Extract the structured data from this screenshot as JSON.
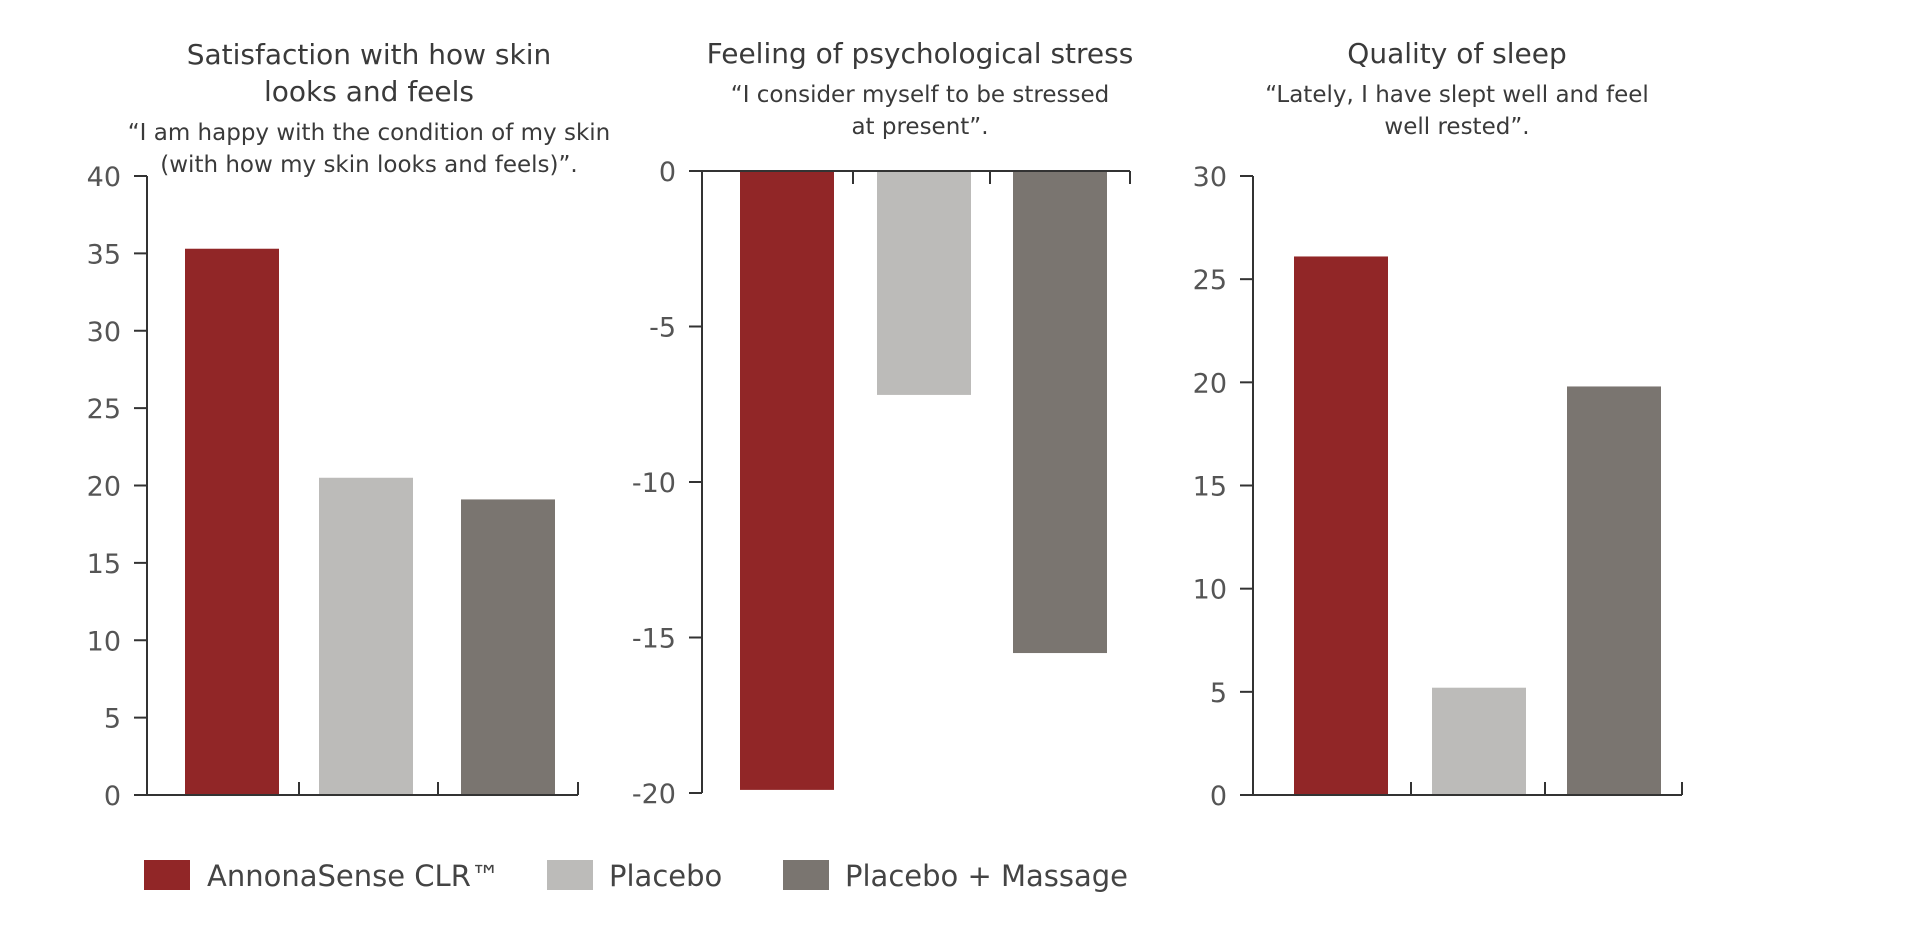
{
  "colors": {
    "AnnonaSense CLR™": "#912627",
    "Placebo": "#bcbbb9",
    "Placebo + Massage": "#7a7570"
  },
  "legend": [
    "AnnonaSense CLR™",
    "Placebo",
    "Placebo + Massage"
  ],
  "chart_data": [
    {
      "type": "bar",
      "title": [
        "Satisfaction with how skin",
        "looks and feels"
      ],
      "subtitle": [
        "“I am happy with the condition of my skin",
        "(with how my skin looks and feels)”."
      ],
      "categories": [
        "AnnonaSense CLR™",
        "Placebo",
        "Placebo + Massage"
      ],
      "values": [
        35.3,
        20.5,
        19.1
      ],
      "ylim": [
        0,
        40
      ],
      "yticks": [
        0,
        5,
        10,
        15,
        20,
        25,
        30,
        35,
        40
      ],
      "grid": false
    },
    {
      "type": "bar",
      "title": [
        "Feeling of psychological stress"
      ],
      "subtitle": [
        "“I consider myself to be stressed",
        "at present”."
      ],
      "categories": [
        "AnnonaSense CLR™",
        "Placebo",
        "Placebo + Massage"
      ],
      "values": [
        -19.9,
        -7.2,
        -15.5
      ],
      "ylim": [
        -20,
        0
      ],
      "yticks": [
        0,
        -5,
        -10,
        -15,
        -20
      ],
      "grid": false
    },
    {
      "type": "bar",
      "title": [
        "Quality of sleep"
      ],
      "subtitle": [
        "“Lately, I have slept well and feel",
        "well rested”."
      ],
      "categories": [
        "AnnonaSense CLR™",
        "Placebo",
        "Placebo + Massage"
      ],
      "values": [
        26.1,
        5.2,
        19.8
      ],
      "ylim": [
        0,
        30
      ],
      "yticks": [
        0,
        5,
        10,
        15,
        20,
        25,
        30
      ],
      "grid": false
    }
  ]
}
